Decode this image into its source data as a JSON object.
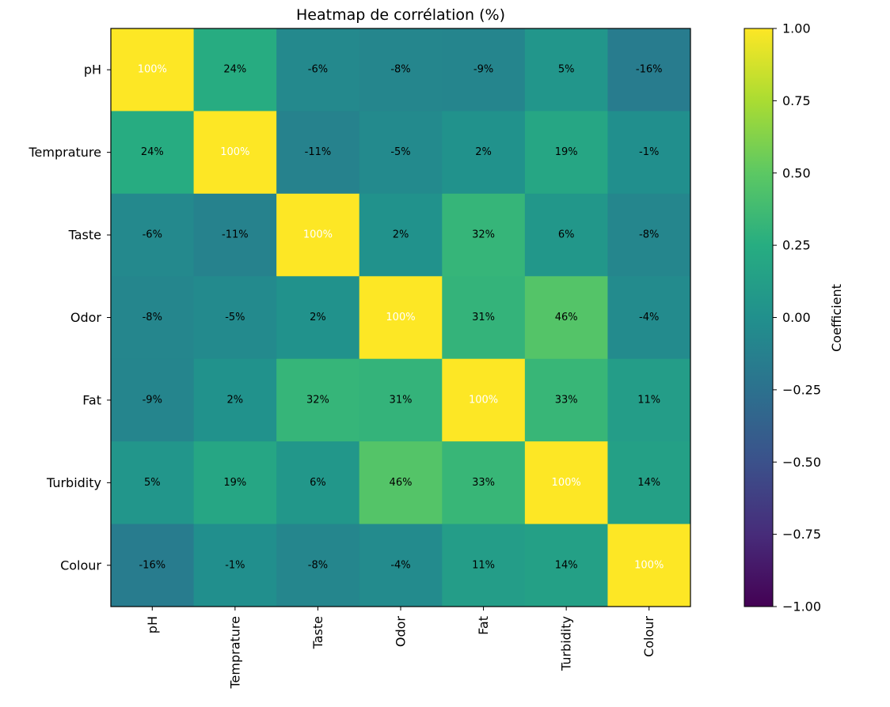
{
  "chart_data": {
    "type": "heatmap",
    "title": "Heatmap de corrélation (%)",
    "x_labels": [
      "pH",
      "Temprature",
      "Taste",
      "Odor",
      "Fat",
      "Turbidity",
      "Colour"
    ],
    "y_labels": [
      "pH",
      "Temprature",
      "Taste",
      "Odor",
      "Fat ",
      "Turbidity",
      "Colour"
    ],
    "values": [
      [
        1.0,
        0.24,
        -0.06,
        -0.08,
        -0.09,
        0.05,
        -0.16
      ],
      [
        0.24,
        1.0,
        -0.11,
        -0.05,
        0.02,
        0.19,
        -0.01
      ],
      [
        -0.06,
        -0.11,
        1.0,
        0.02,
        0.32,
        0.06,
        -0.08
      ],
      [
        -0.08,
        -0.05,
        0.02,
        1.0,
        0.31,
        0.46,
        -0.04
      ],
      [
        -0.09,
        0.02,
        0.32,
        0.31,
        1.0,
        0.33,
        0.11
      ],
      [
        0.05,
        0.19,
        0.06,
        0.46,
        0.33,
        1.0,
        0.14
      ],
      [
        -0.16,
        -0.01,
        -0.08,
        -0.04,
        0.11,
        0.14,
        1.0
      ]
    ],
    "cell_labels": [
      [
        "100%",
        "24%",
        "-6%",
        "-8%",
        "-9%",
        "5%",
        "-16%"
      ],
      [
        "24%",
        "100%",
        "-11%",
        "-5%",
        "2%",
        "19%",
        "-1%"
      ],
      [
        "-6%",
        "-11%",
        "100%",
        "2%",
        "32%",
        "6%",
        "-8%"
      ],
      [
        "-8%",
        "-5%",
        "2%",
        "100%",
        "31%",
        "46%",
        "-4%"
      ],
      [
        "-9%",
        "2%",
        "32%",
        "31%",
        "100%",
        "33%",
        "11%"
      ],
      [
        "5%",
        "19%",
        "6%",
        "46%",
        "33%",
        "100%",
        "14%"
      ],
      [
        "-16%",
        "-1%",
        "-8%",
        "-4%",
        "11%",
        "14%",
        "100%"
      ]
    ],
    "colormap": "viridis",
    "colorbar": {
      "label": "Coefficient",
      "range": [
        -1.0,
        1.0
      ],
      "ticks": [
        1.0,
        0.75,
        0.5,
        0.25,
        0.0,
        -0.25,
        -0.5,
        -0.75,
        -1.0
      ],
      "tick_labels": [
        "1.00",
        "0.75",
        "0.50",
        "0.25",
        "0.00",
        "−0.25",
        "−0.50",
        "−0.75",
        "−1.00"
      ],
      "placement": "right"
    },
    "text_colors": {
      "high": "#ffffff",
      "default": "#000000"
    },
    "grid": false
  }
}
